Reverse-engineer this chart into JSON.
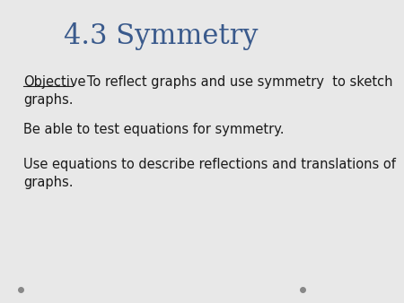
{
  "title": "4.3 Symmetry",
  "title_color": "#3a5a8c",
  "title_fontsize": 22,
  "title_font": "serif",
  "background_color": "#e8e8e8",
  "body_fontsize": 10.5,
  "body_color": "#1a1a1a",
  "objective_label": "Objective",
  "rest_of_line1": "   To reflect graphs and use symmetry  to sketch",
  "line2": "graphs.",
  "line3": "Be able to test equations for symmetry.",
  "line4": "Use equations to describe reflections and translations of",
  "line5": "graphs.",
  "dot_color": "#888888",
  "dot_size": 4
}
